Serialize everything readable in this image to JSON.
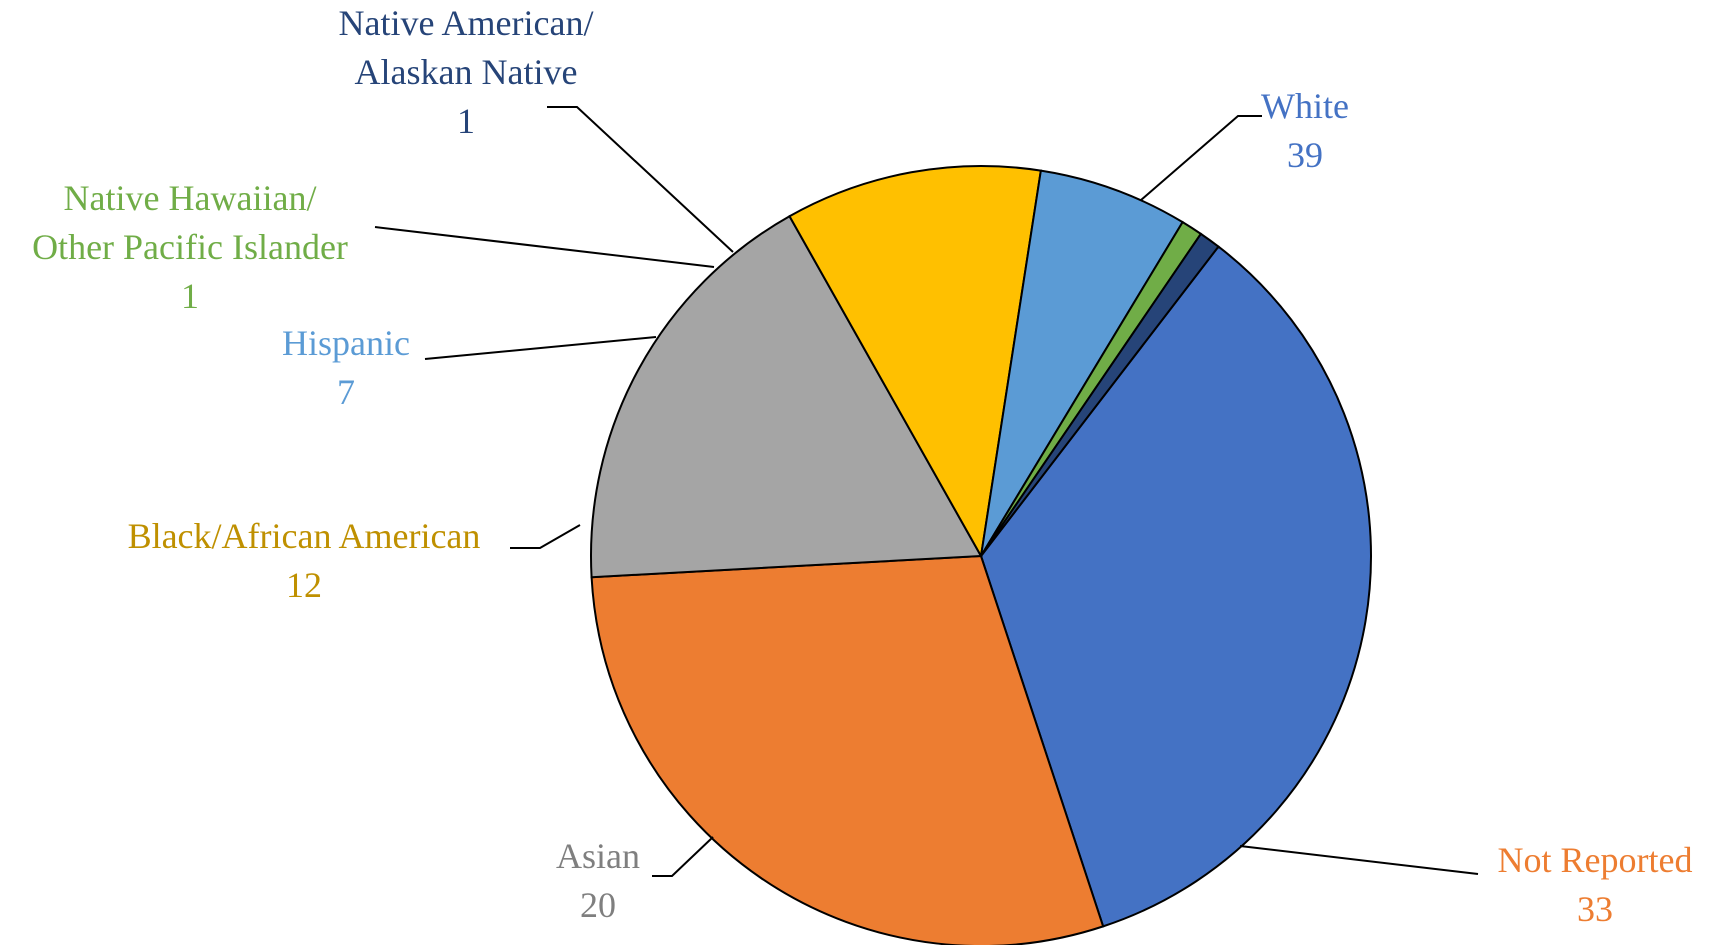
{
  "chart_data": {
    "type": "pie",
    "title": "",
    "slices": [
      {
        "label": [
          "White"
        ],
        "value": 39,
        "color": "#4472C4"
      },
      {
        "label": [
          "Not Reported"
        ],
        "value": 33,
        "color": "#ED7D31"
      },
      {
        "label": [
          "Asian"
        ],
        "value": 20,
        "color": "#A5A5A5"
      },
      {
        "label": [
          "Black/African American"
        ],
        "value": 12,
        "color": "#FFC000"
      },
      {
        "label": [
          "Hispanic"
        ],
        "value": 7,
        "color": "#5B9BD5"
      },
      {
        "label": [
          "Native Hawaiian/",
          "Other Pacific Islander"
        ],
        "value": 1,
        "color": "#70AD47"
      },
      {
        "label": [
          "Native American/",
          "Alaskan Native"
        ],
        "value": 1,
        "color": "#264478"
      }
    ],
    "label_colors": [
      "#4472C4",
      "#ED7D31",
      "#7F7F7F",
      "#BF9000",
      "#5B9BD5",
      "#70AD47",
      "#264478"
    ],
    "legend": "none"
  }
}
